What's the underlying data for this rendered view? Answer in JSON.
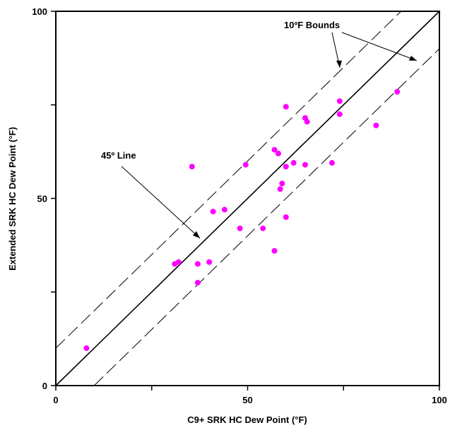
{
  "chart_data": {
    "type": "scatter",
    "xlabel": "C9+ SRK HC Dew Point (°F)",
    "ylabel": "Extended SRK HC Dew Point (°F)",
    "xlim": [
      0,
      100
    ],
    "ylim": [
      0,
      100
    ],
    "x_tick_labels": [
      "0",
      "50",
      "100"
    ],
    "y_tick_labels": [
      "0",
      "50",
      "100"
    ],
    "grid": false,
    "legend": "none",
    "point_color": "#ff00ff",
    "reference_line": {
      "slope": 1,
      "intercept": 0,
      "style": "solid"
    },
    "bounds": {
      "offset": 10,
      "style": "dashed"
    },
    "annotations": {
      "line_45": "45º Line",
      "bounds_10F": "10ºF Bounds"
    },
    "points": [
      {
        "x": 8,
        "y": 10
      },
      {
        "x": 31,
        "y": 32.5
      },
      {
        "x": 32,
        "y": 33
      },
      {
        "x": 35.5,
        "y": 58.5
      },
      {
        "x": 37,
        "y": 27.5
      },
      {
        "x": 37,
        "y": 32.5
      },
      {
        "x": 40,
        "y": 33
      },
      {
        "x": 41,
        "y": 46.5
      },
      {
        "x": 44,
        "y": 47
      },
      {
        "x": 48,
        "y": 42
      },
      {
        "x": 49.5,
        "y": 59
      },
      {
        "x": 54,
        "y": 42
      },
      {
        "x": 57,
        "y": 36
      },
      {
        "x": 57,
        "y": 63
      },
      {
        "x": 58,
        "y": 62
      },
      {
        "x": 58.5,
        "y": 52.5
      },
      {
        "x": 59,
        "y": 54
      },
      {
        "x": 60,
        "y": 45
      },
      {
        "x": 60,
        "y": 58.5
      },
      {
        "x": 60,
        "y": 74.5
      },
      {
        "x": 62,
        "y": 59.5
      },
      {
        "x": 65,
        "y": 59
      },
      {
        "x": 65,
        "y": 71.5
      },
      {
        "x": 65.5,
        "y": 70.5
      },
      {
        "x": 72,
        "y": 59.5
      },
      {
        "x": 74,
        "y": 76
      },
      {
        "x": 74,
        "y": 72.5
      },
      {
        "x": 83.5,
        "y": 69.5
      },
      {
        "x": 89,
        "y": 78.5
      }
    ]
  }
}
